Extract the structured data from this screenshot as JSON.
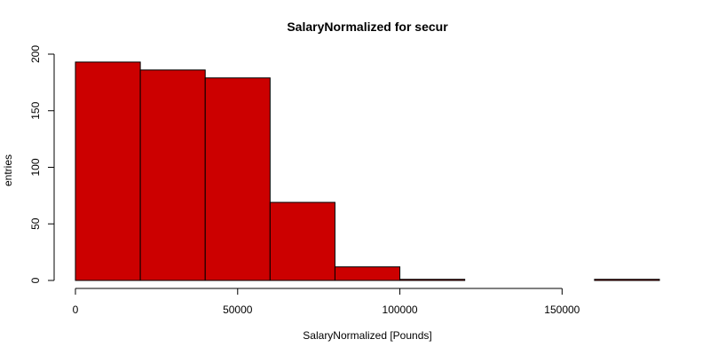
{
  "chart_data": {
    "type": "bar",
    "title": "SalaryNormalized for secur",
    "xlabel": "SalaryNormalized [Pounds]",
    "ylabel": "entries",
    "bar_color": "#CC0000",
    "edge_color": "#000000",
    "bins": [
      {
        "x0": 0,
        "x1": 20000,
        "count": 193
      },
      {
        "x0": 20000,
        "x1": 40000,
        "count": 186
      },
      {
        "x0": 40000,
        "x1": 60000,
        "count": 179
      },
      {
        "x0": 60000,
        "x1": 80000,
        "count": 69
      },
      {
        "x0": 80000,
        "x1": 100000,
        "count": 12
      },
      {
        "x0": 100000,
        "x1": 120000,
        "count": 1
      },
      {
        "x0": 120000,
        "x1": 140000,
        "count": 0
      },
      {
        "x0": 140000,
        "x1": 160000,
        "count": 0
      },
      {
        "x0": 160000,
        "x1": 180000,
        "count": 1
      }
    ],
    "xlim": [
      0,
      180000
    ],
    "ylim": [
      0,
      200
    ],
    "xticks": [
      0,
      50000,
      100000,
      150000
    ],
    "xtick_labels": [
      "0",
      "50000",
      "100000",
      "150000"
    ],
    "yticks": [
      0,
      50,
      100,
      150,
      200
    ],
    "ytick_labels": [
      "0",
      "50",
      "100",
      "150",
      "200"
    ],
    "grid": false,
    "legend": "none"
  }
}
